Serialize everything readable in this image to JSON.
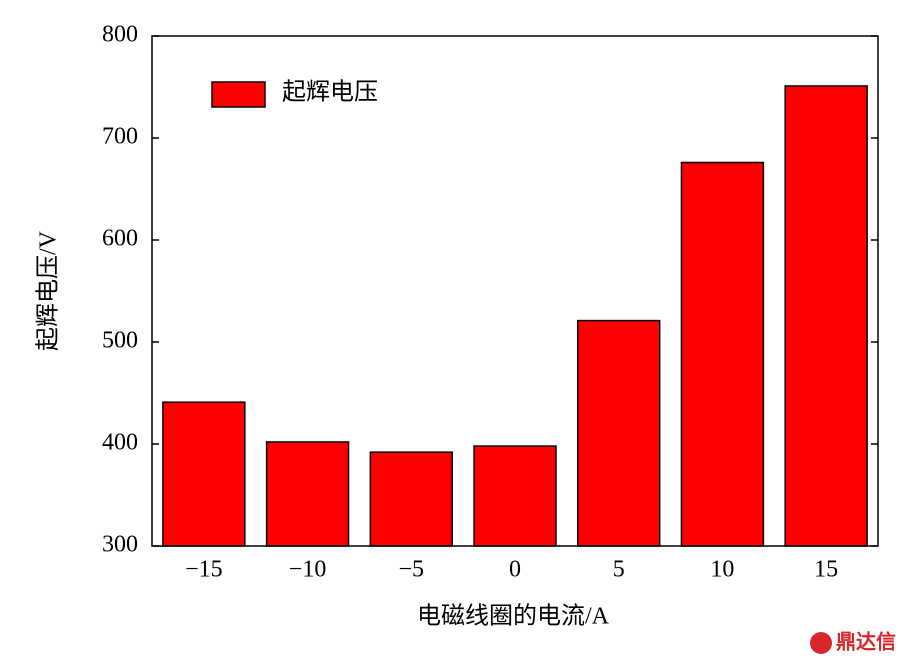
{
  "chart_data": {
    "type": "bar",
    "xlabel": "电磁线圈的电流/A",
    "ylabel": "起辉电压/V",
    "categories": [
      "−15",
      "−10",
      "−5",
      "0",
      "5",
      "10",
      "15"
    ],
    "series": [
      {
        "name": "起辉电压",
        "color": "#ff0000",
        "values": [
          441,
          402,
          392,
          398,
          521,
          676,
          751
        ]
      }
    ],
    "ylim": [
      300,
      800
    ],
    "yticks": [
      300,
      400,
      500,
      600,
      700,
      800
    ],
    "legend": "upper left",
    "watermark": "鼎达信"
  }
}
